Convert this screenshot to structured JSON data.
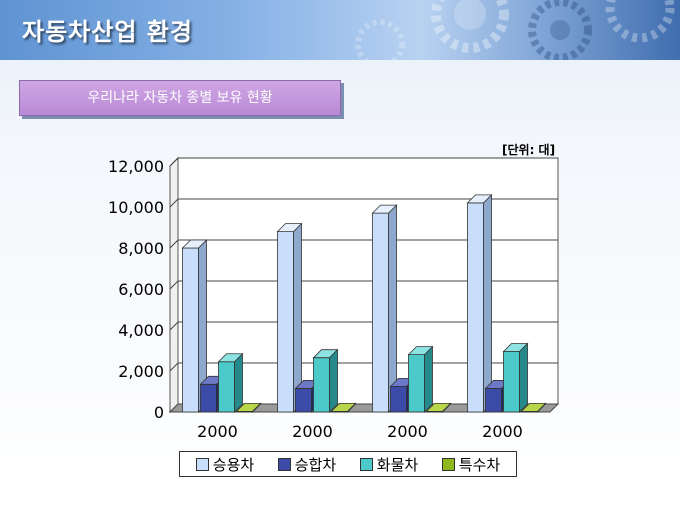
{
  "header": {
    "title": "자동차산업 환경"
  },
  "section": {
    "label": "우리나라 자동차 종별 보유 현황"
  },
  "unit": "[단위: 대]",
  "colors": {
    "series": [
      "#c8defa",
      "#3d4ba8",
      "#4cc9c9",
      "#8fb81a"
    ],
    "sides": [
      "#8ea7cc",
      "#222a66",
      "#278a8a",
      "#5a7a0a"
    ],
    "tops": [
      "#e6f0fd",
      "#6d79c8",
      "#8de2e2",
      "#b7d64a"
    ]
  },
  "chart_data": {
    "type": "bar",
    "categories": [
      "2000",
      "2000",
      "2000",
      "2000"
    ],
    "series": [
      {
        "name": "승용차",
        "values": [
          8000,
          8800,
          9700,
          10200
        ]
      },
      {
        "name": "승합차",
        "values": [
          1350,
          1150,
          1250,
          1150
        ]
      },
      {
        "name": "화물차",
        "values": [
          2450,
          2650,
          2800,
          2950
        ]
      },
      {
        "name": "특수차",
        "values": [
          30,
          30,
          30,
          30
        ]
      }
    ],
    "yticks": [
      "12,000",
      "10,000",
      "8,000",
      "6,000",
      "4,000",
      "2,000",
      "0"
    ],
    "ylim": [
      0,
      12000
    ],
    "grid": true,
    "legend": "bottom",
    "xlabel": "",
    "ylabel": ""
  }
}
